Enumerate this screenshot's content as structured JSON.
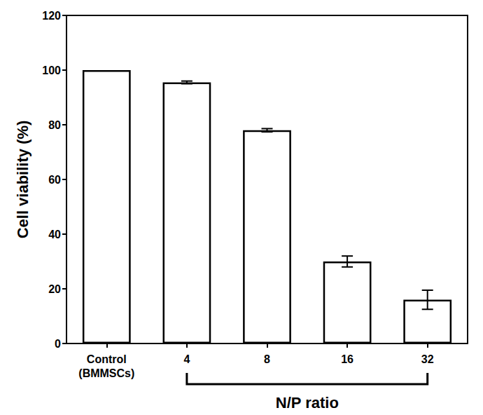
{
  "chart_data": {
    "type": "bar",
    "categories": [
      "Control\n(BMMSCs)",
      "4",
      "8",
      "16",
      "32"
    ],
    "values": [
      100,
      95.5,
      78,
      30,
      16
    ],
    "errors": [
      0,
      0.5,
      0.6,
      2,
      3.5
    ],
    "color": "#ffffff",
    "xlabel": "N/P ratio",
    "ylabel": "Cell viability (%)",
    "ylim": [
      0,
      120
    ],
    "yticks": [
      0,
      20,
      40,
      60,
      80,
      100,
      120
    ],
    "grid": false
  }
}
